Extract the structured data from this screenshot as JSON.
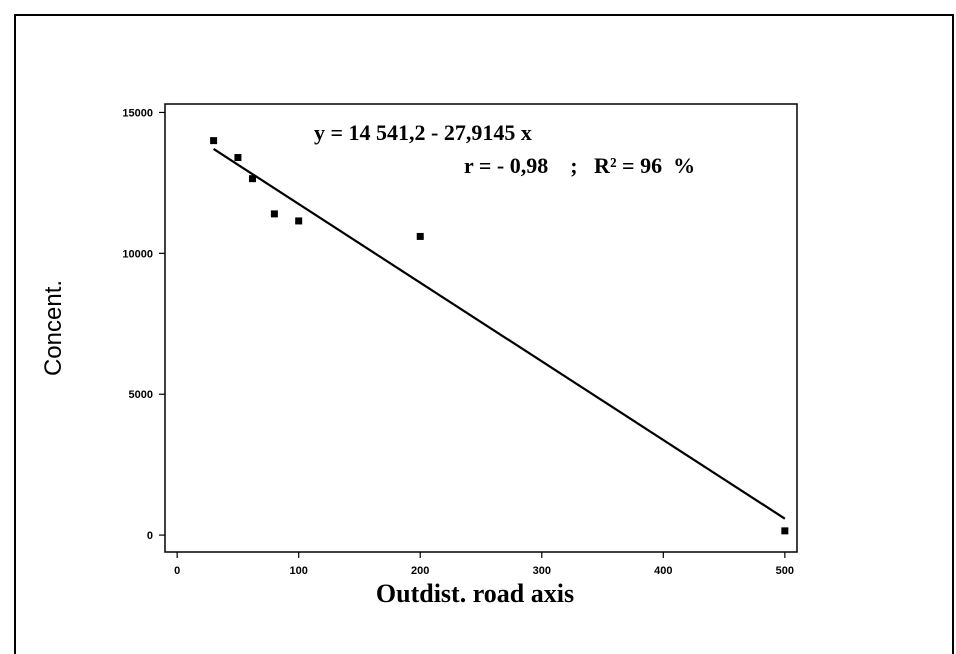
{
  "chart_data": {
    "type": "scatter",
    "title": "",
    "xlabel": "Outdist. road axis",
    "ylabel": "Concent.",
    "xlim": [
      -10,
      510
    ],
    "ylim": [
      -600,
      15300
    ],
    "x_ticks": [
      0,
      100,
      200,
      300,
      400,
      500
    ],
    "x_tick_labels": [
      "0",
      "100",
      "200",
      "300",
      "400",
      "500"
    ],
    "y_ticks": [
      0,
      5000,
      10000,
      15000
    ],
    "y_tick_labels": [
      "0",
      "5000",
      "10000",
      "15000"
    ],
    "grid": false,
    "legend": "none",
    "series": [
      {
        "points": [
          {
            "x": 30,
            "y": 14000
          },
          {
            "x": 50,
            "y": 13400
          },
          {
            "x": 62,
            "y": 12650
          },
          {
            "x": 80,
            "y": 11400
          },
          {
            "x": 100,
            "y": 11150
          },
          {
            "x": 200,
            "y": 10600
          },
          {
            "x": 500,
            "y": 150
          }
        ],
        "color": "#000000"
      }
    ],
    "trendline": {
      "intercept": 14541.2,
      "slope": -27.9145,
      "x_range": [
        30,
        500
      ],
      "color": "#000000"
    },
    "annotations": {
      "equation": "y = 14 541,2 - 27,9145 x",
      "stats": "r = - 0,98    ;   R² = 96  %"
    }
  }
}
